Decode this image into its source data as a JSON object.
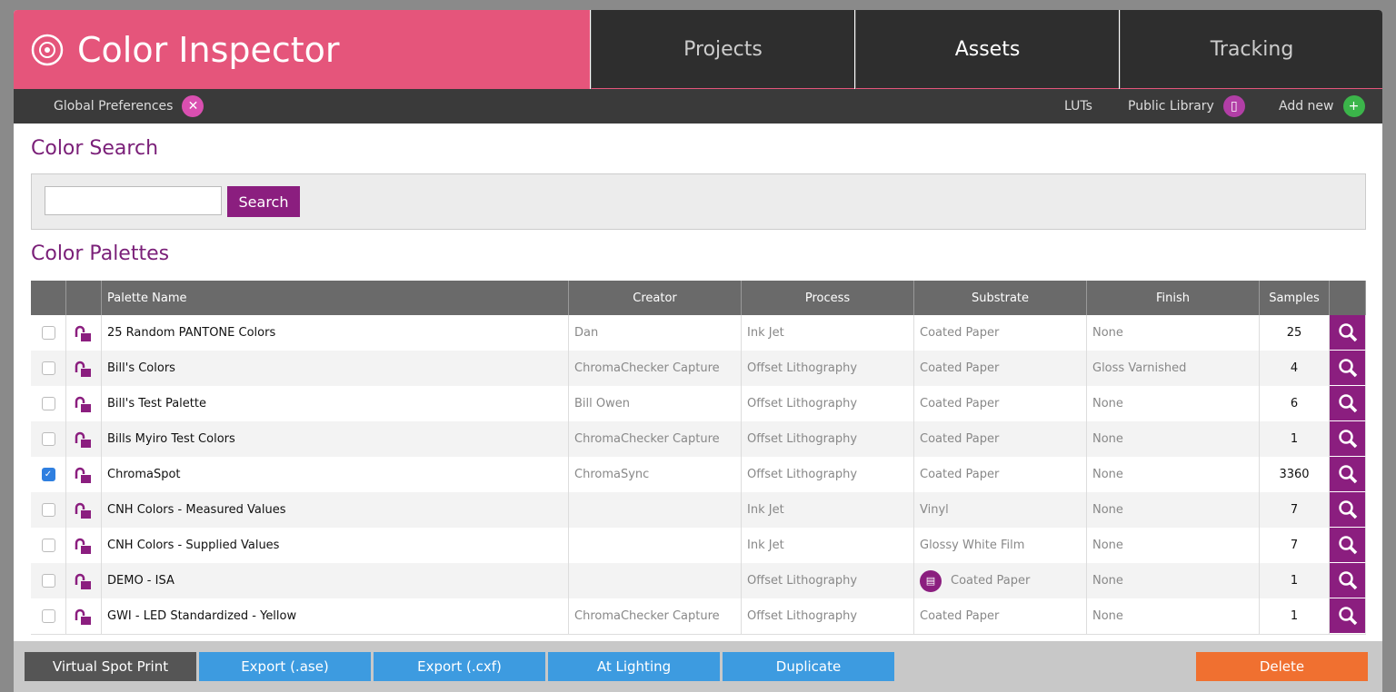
{
  "header": {
    "title": "Color Inspector",
    "tabs": [
      "Projects",
      "Assets",
      "Tracking"
    ],
    "active_tab": 1
  },
  "subnav": {
    "left": "Global Preferences",
    "right": [
      "LUTs",
      "Public Library",
      "Add new"
    ]
  },
  "search": {
    "title": "Color Search",
    "button": "Search"
  },
  "palettes": {
    "title": "Color Palettes",
    "columns": [
      "Palette Name",
      "Creator",
      "Process",
      "Substrate",
      "Finish",
      "Samples"
    ],
    "rows": [
      {
        "name": "25 Random PANTONE Colors",
        "creator": "Dan",
        "process": "Ink Jet",
        "substrate": "Coated Paper",
        "finish": "None",
        "samples": 25,
        "checked": false
      },
      {
        "name": "Bill's Colors",
        "creator": "ChromaChecker Capture",
        "process": "Offset Lithography",
        "substrate": "Coated Paper",
        "finish": "Gloss Varnished",
        "samples": 4,
        "checked": false
      },
      {
        "name": "Bill's Test Palette",
        "creator": "Bill Owen",
        "process": "Offset Lithography",
        "substrate": "Coated Paper",
        "finish": "None",
        "samples": 6,
        "checked": false
      },
      {
        "name": "Bills Myiro Test Colors",
        "creator": "ChromaChecker Capture",
        "process": "Offset Lithography",
        "substrate": "Coated Paper",
        "finish": "None",
        "samples": 1,
        "checked": false
      },
      {
        "name": "ChromaSpot",
        "creator": "ChromaSync",
        "process": "Offset Lithography",
        "substrate": "Coated Paper",
        "finish": "None",
        "samples": 3360,
        "checked": true
      },
      {
        "name": "CNH Colors - Measured Values",
        "process": "Ink Jet",
        "substrate": "Vinyl",
        "finish": "None",
        "samples": 7,
        "checked": false
      },
      {
        "name": "CNH Colors - Supplied Values",
        "process": "Ink Jet",
        "substrate": "Glossy White Film",
        "finish": "None",
        "samples": 7,
        "checked": false
      },
      {
        "name": "DEMO - ISA",
        "process": "Offset Lithography",
        "substrate": "Coated Paper",
        "substrate_icon": true,
        "finish": "None",
        "samples": 1,
        "checked": false
      },
      {
        "name": "GWI - LED Standardized - Yellow",
        "creator": "ChromaChecker Capture",
        "process": "Offset Lithography",
        "substrate": "Coated Paper",
        "finish": "None",
        "samples": 1,
        "checked": false
      }
    ]
  },
  "actions": {
    "buttons": [
      "Virtual Spot Print",
      "Export (.ase)",
      "Export (.cxf)",
      "At Lighting",
      "Duplicate"
    ],
    "delete": "Delete"
  }
}
